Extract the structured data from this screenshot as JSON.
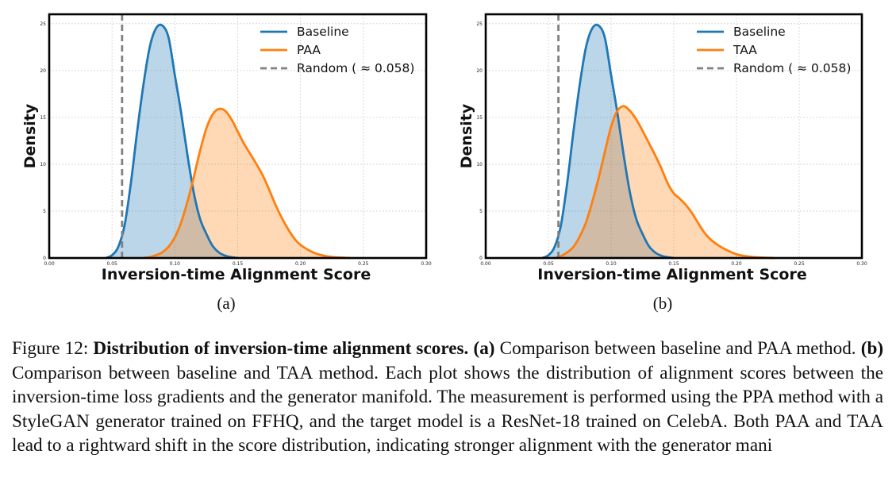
{
  "figure": {
    "panels": [
      {
        "id": "a",
        "label": "(a)",
        "ylabel": "Density",
        "xlabel": "Inversion-time Alignment Score",
        "xlim": [
          0.0,
          0.3
        ],
        "ylim": [
          0,
          26
        ],
        "xticks": [
          "0.00",
          "0.05",
          "0.10",
          "0.15",
          "0.20",
          "0.25",
          "0.30"
        ],
        "yticks": [
          "0",
          "5",
          "10",
          "15",
          "20",
          "25"
        ],
        "legend": [
          "Baseline",
          "PAA",
          "Random ( ≈ 0.058)"
        ]
      },
      {
        "id": "b",
        "label": "(b)",
        "ylabel": "Density",
        "xlabel": "Inversion-time Alignment Score",
        "xlim": [
          0.0,
          0.3
        ],
        "ylim": [
          0,
          26
        ],
        "xticks": [
          "0.00",
          "0.05",
          "0.10",
          "0.15",
          "0.20",
          "0.25",
          "0.30"
        ],
        "yticks": [
          "0",
          "5",
          "10",
          "15",
          "20",
          "25"
        ],
        "legend": [
          "Baseline",
          "TAA",
          "Random ( ≈ 0.058)"
        ]
      }
    ],
    "colors": {
      "baseline": "#1f77b4",
      "method": "#ff7f0e",
      "random": "#808080"
    }
  },
  "caption": {
    "label": "Figure 12:",
    "bold_title": "Distribution of inversion-time alignment scores.",
    "part_a": "(a)",
    "text_a": "Comparison between baseline and PAA method.",
    "part_b": "(b)",
    "text_b": "Comparison between baseline and TAA method. Each plot shows the distribution of alignment scores between the inversion-time loss gradients and the generator manifold. The measurement is performed using the PPA method with a StyleGAN generator trained on FFHQ, and the target model is a ResNet-18 trained on CelebA. Both PAA and TAA lead to a rightward shift in the score distribution, indicating stronger alignment with the generator mani"
  },
  "chart_data": [
    {
      "type": "area",
      "xlabel": "Inversion-time Alignment Score",
      "ylabel": "Density",
      "xlim": [
        0.0,
        0.3
      ],
      "ylim": [
        0,
        26
      ],
      "grid": true,
      "legend_position": "top-right",
      "random_line": 0.058,
      "series": [
        {
          "name": "Baseline",
          "x": [
            0.045,
            0.05,
            0.055,
            0.06,
            0.065,
            0.07,
            0.075,
            0.08,
            0.085,
            0.09,
            0.095,
            0.1,
            0.105,
            0.11,
            0.115,
            0.12,
            0.125,
            0.13,
            0.135,
            0.14,
            0.145,
            0.15
          ],
          "y": [
            0,
            0.3,
            1.2,
            3.5,
            8.0,
            13.5,
            18.5,
            22.5,
            24.5,
            24.8,
            23.5,
            19.5,
            15.5,
            11.0,
            7.0,
            4.2,
            2.6,
            1.3,
            0.6,
            0.25,
            0.08,
            0
          ]
        },
        {
          "name": "PAA",
          "x": [
            0.075,
            0.08,
            0.085,
            0.09,
            0.095,
            0.1,
            0.105,
            0.11,
            0.115,
            0.12,
            0.125,
            0.13,
            0.135,
            0.14,
            0.145,
            0.15,
            0.155,
            0.16,
            0.165,
            0.17,
            0.175,
            0.18,
            0.185,
            0.19,
            0.195,
            0.2,
            0.21,
            0.22,
            0.23,
            0.24
          ],
          "y": [
            0,
            0.1,
            0.3,
            0.6,
            1.2,
            2.2,
            3.8,
            6.0,
            8.6,
            11.4,
            13.8,
            15.3,
            15.9,
            15.7,
            14.8,
            13.5,
            12.2,
            11.1,
            10.0,
            8.8,
            7.3,
            5.7,
            4.3,
            3.1,
            2.1,
            1.4,
            0.6,
            0.2,
            0.06,
            0
          ]
        }
      ]
    },
    {
      "type": "area",
      "xlabel": "Inversion-time Alignment Score",
      "ylabel": "Density",
      "xlim": [
        0.0,
        0.3
      ],
      "ylim": [
        0,
        26
      ],
      "grid": true,
      "legend_position": "top-right",
      "random_line": 0.058,
      "series": [
        {
          "name": "Baseline",
          "x": [
            0.045,
            0.05,
            0.055,
            0.06,
            0.065,
            0.07,
            0.075,
            0.08,
            0.085,
            0.09,
            0.095,
            0.1,
            0.105,
            0.11,
            0.115,
            0.12,
            0.125,
            0.13,
            0.135,
            0.14,
            0.145,
            0.15
          ],
          "y": [
            0,
            0.3,
            1.2,
            3.5,
            8.0,
            13.5,
            18.5,
            22.5,
            24.5,
            24.8,
            23.5,
            19.5,
            15.5,
            11.0,
            7.0,
            4.2,
            2.6,
            1.3,
            0.6,
            0.25,
            0.08,
            0
          ]
        },
        {
          "name": "TAA",
          "x": [
            0.055,
            0.06,
            0.065,
            0.07,
            0.075,
            0.08,
            0.085,
            0.09,
            0.095,
            0.1,
            0.105,
            0.11,
            0.115,
            0.12,
            0.125,
            0.13,
            0.135,
            0.14,
            0.145,
            0.15,
            0.155,
            0.16,
            0.165,
            0.17,
            0.175,
            0.18,
            0.185,
            0.19,
            0.2,
            0.21,
            0.22,
            0.23
          ],
          "y": [
            0,
            0.2,
            0.6,
            1.2,
            2.3,
            3.8,
            6.0,
            8.5,
            11.3,
            14.0,
            15.7,
            16.2,
            15.7,
            14.8,
            13.6,
            12.3,
            11.0,
            9.6,
            8.0,
            6.9,
            6.3,
            5.6,
            4.7,
            3.6,
            2.6,
            1.9,
            1.4,
            1.0,
            0.4,
            0.15,
            0.05,
            0
          ]
        }
      ]
    }
  ]
}
